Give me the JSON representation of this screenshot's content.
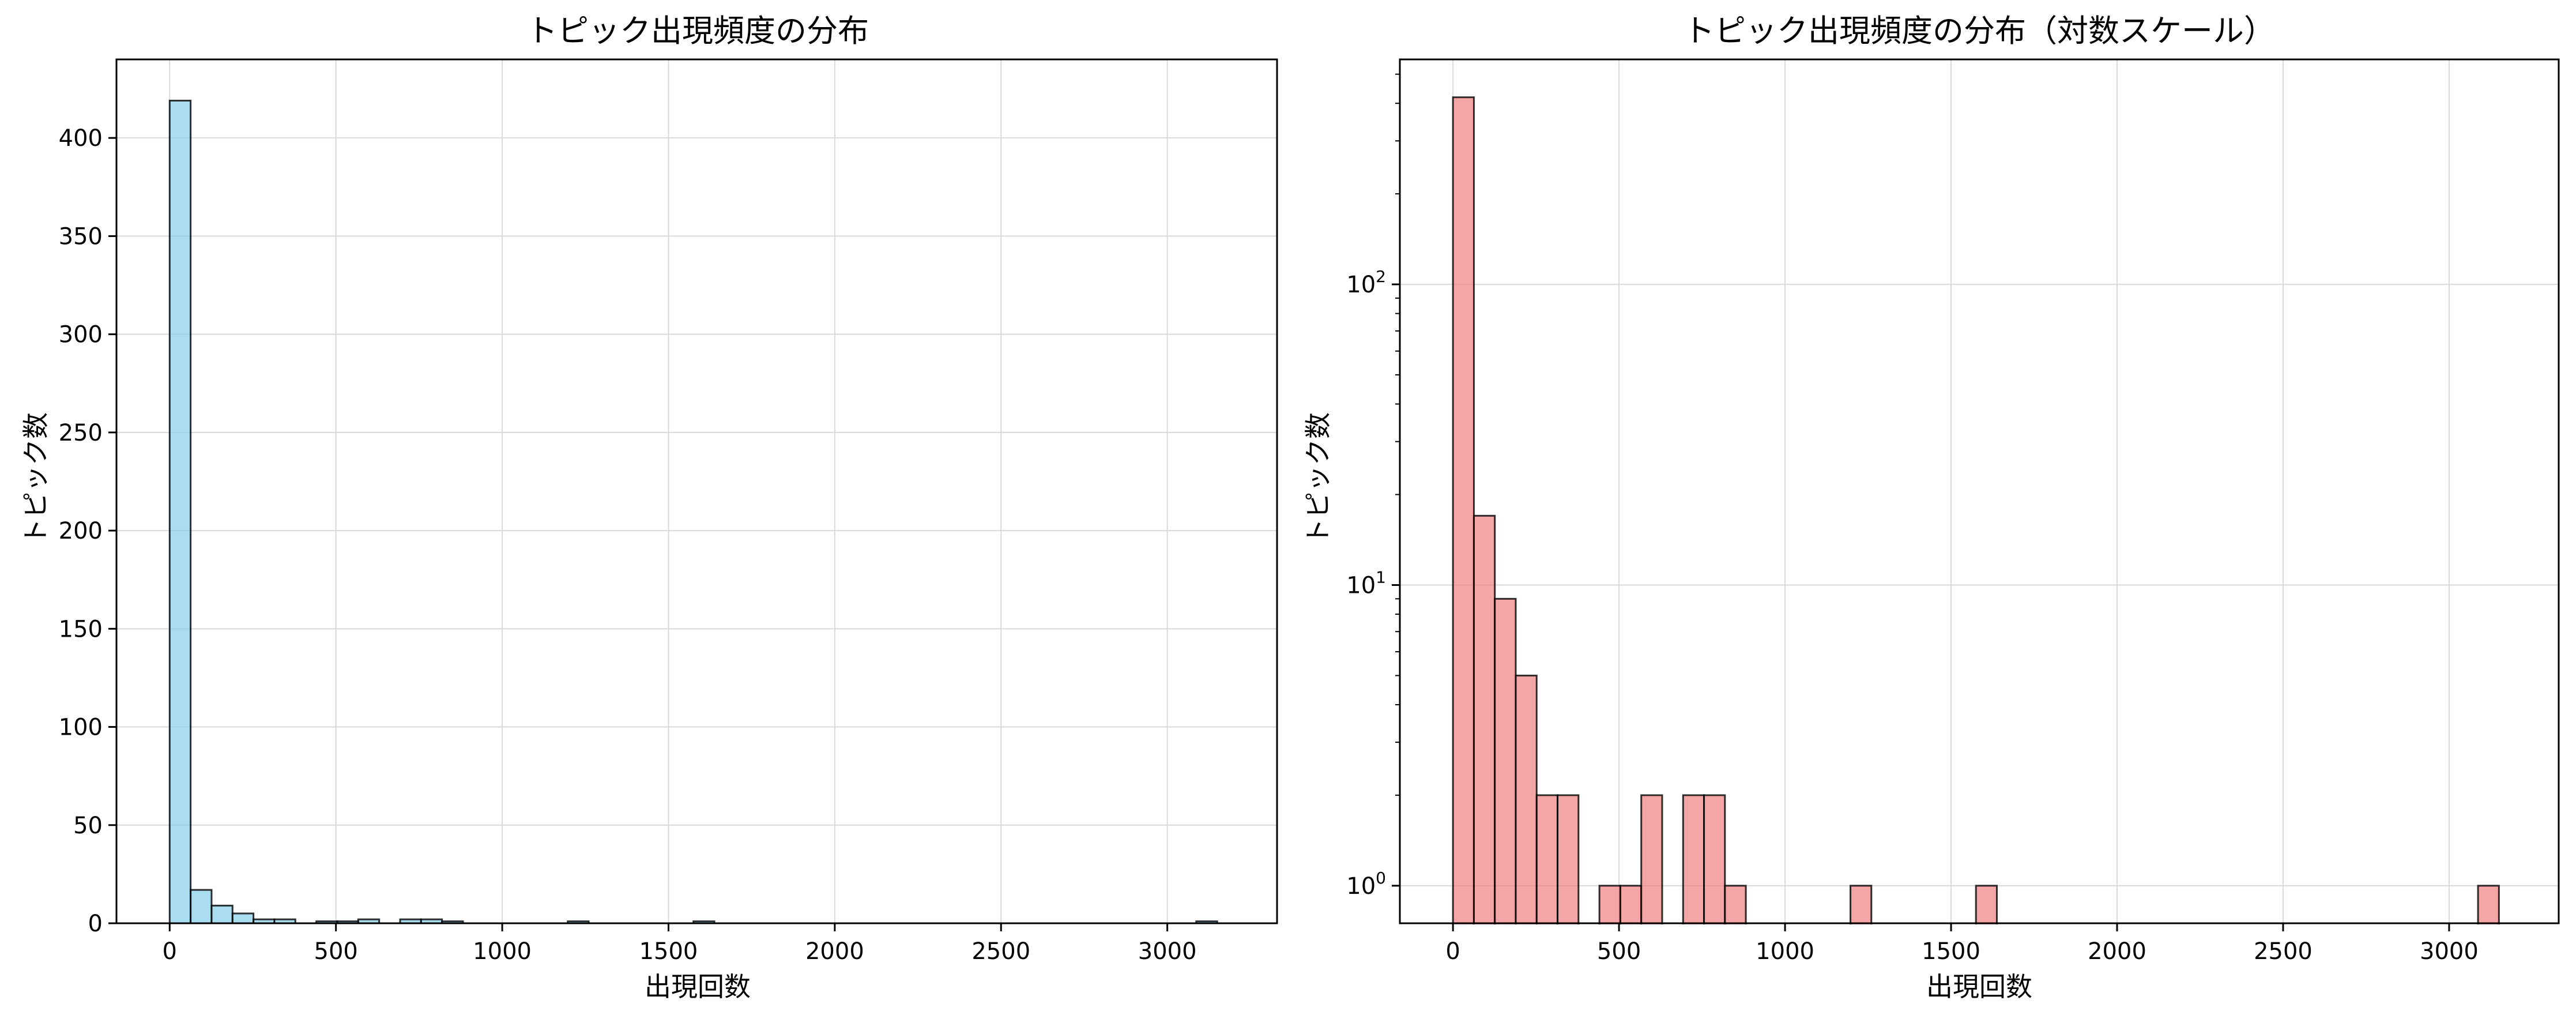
{
  "chart_data": [
    {
      "type": "bar",
      "title": "トピック出現頻度の分布",
      "xlabel": "出現回数",
      "ylabel": "トピック数",
      "scale": "linear",
      "xlim": [
        -160,
        3330
      ],
      "ylim": [
        0,
        440
      ],
      "x_ticks": [
        0,
        500,
        1000,
        1500,
        2000,
        2500,
        3000
      ],
      "y_ticks": [
        0,
        50,
        100,
        150,
        200,
        250,
        300,
        350,
        400
      ],
      "grid": true,
      "color": "#87CEEB",
      "bin_edges": [
        0,
        63,
        126,
        189,
        252,
        315,
        378,
        441,
        504,
        567,
        630,
        693,
        756,
        819,
        882,
        945,
        1008,
        1071,
        1134,
        1197,
        1260,
        1323,
        1386,
        1449,
        1512,
        1575,
        1638,
        1701,
        1764,
        1827,
        1890,
        1953,
        2016,
        2079,
        2142,
        2205,
        2268,
        2331,
        2394,
        2457,
        2520,
        2583,
        2646,
        2709,
        2772,
        2835,
        2898,
        2961,
        3024,
        3087,
        3150
      ],
      "values": [
        419,
        17,
        9,
        5,
        2,
        2,
        0,
        1,
        1,
        2,
        0,
        2,
        2,
        1,
        0,
        0,
        0,
        0,
        0,
        1,
        0,
        0,
        0,
        0,
        0,
        1,
        0,
        0,
        0,
        0,
        0,
        0,
        0,
        0,
        0,
        0,
        0,
        0,
        0,
        0,
        0,
        0,
        0,
        0,
        0,
        0,
        0,
        0,
        0,
        1
      ]
    },
    {
      "type": "bar",
      "title": "トピック出現頻度の分布（対数スケール）",
      "xlabel": "出現回数",
      "ylabel": "トピック数",
      "scale": "log",
      "xlim": [
        -160,
        3330
      ],
      "ylim": [
        0.75,
        560
      ],
      "x_ticks": [
        0,
        500,
        1000,
        1500,
        2000,
        2500,
        3000
      ],
      "y_ticks": [
        1,
        10,
        100
      ],
      "y_tick_labels": [
        {
          "base": "10",
          "exp": "0"
        },
        {
          "base": "10",
          "exp": "1"
        },
        {
          "base": "10",
          "exp": "2"
        }
      ],
      "grid": true,
      "color": "#F08080",
      "bin_edges": [
        0,
        63,
        126,
        189,
        252,
        315,
        378,
        441,
        504,
        567,
        630,
        693,
        756,
        819,
        882,
        945,
        1008,
        1071,
        1134,
        1197,
        1260,
        1323,
        1386,
        1449,
        1512,
        1575,
        1638,
        1701,
        1764,
        1827,
        1890,
        1953,
        2016,
        2079,
        2142,
        2205,
        2268,
        2331,
        2394,
        2457,
        2520,
        2583,
        2646,
        2709,
        2772,
        2835,
        2898,
        2961,
        3024,
        3087,
        3150
      ],
      "values": [
        419,
        17,
        9,
        5,
        2,
        2,
        0,
        1,
        1,
        2,
        0,
        2,
        2,
        1,
        0,
        0,
        0,
        0,
        0,
        1,
        0,
        0,
        0,
        0,
        0,
        1,
        0,
        0,
        0,
        0,
        0,
        0,
        0,
        0,
        0,
        0,
        0,
        0,
        0,
        0,
        0,
        0,
        0,
        0,
        0,
        0,
        0,
        0,
        0,
        1
      ]
    }
  ]
}
